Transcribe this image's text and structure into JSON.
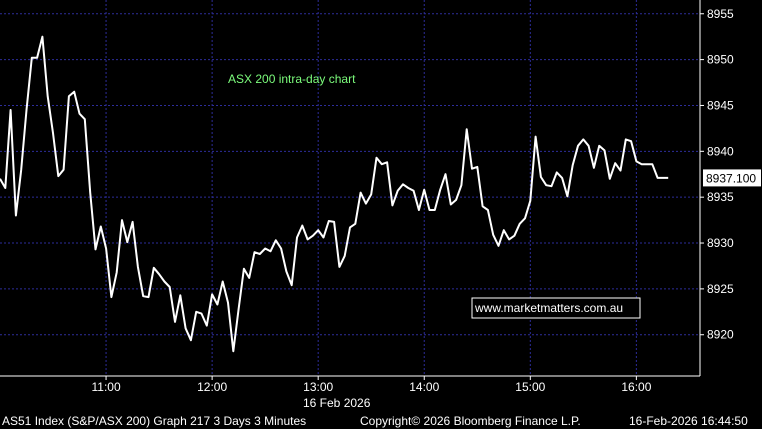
{
  "chart_data": {
    "type": "line",
    "annotation": "ASX 200 intra-day chart",
    "watermark": "www.marketmatters.com.au",
    "date_label": "16 Feb 2026",
    "last_value_label": "8937.100",
    "footer": {
      "left": "AS51 Index (S&P/ASX 200) Graph 217 3 Days 3 Minutes",
      "center": "Copyright© 2026 Bloomberg Finance L.P.",
      "right": "16-Feb-2026 16:44:50"
    },
    "y_ticks": [
      8920,
      8925,
      8930,
      8935,
      8940,
      8945,
      8950,
      8955
    ],
    "y_tick_labels": [
      "8920",
      "8925",
      "8930",
      "8935",
      "8940",
      "8945",
      "8950",
      "8955"
    ],
    "ylim": [
      8915.5,
      8956.5
    ],
    "x_ticks": [
      11,
      12,
      13,
      14,
      15,
      16
    ],
    "x_tick_labels": [
      "11:00",
      "12:00",
      "13:00",
      "14:00",
      "15:00",
      "16:00"
    ],
    "xlim": [
      10.0,
      16.6
    ],
    "grid": true,
    "colors": {
      "line": "#ffffff",
      "grid": "#2d2d9a",
      "background": "#000000",
      "annotation": "#7CFC7C"
    },
    "series": [
      {
        "x": [
          10.0,
          10.05,
          10.1,
          10.15,
          10.2,
          10.25,
          10.3,
          10.35,
          10.4,
          10.45,
          10.5,
          10.55,
          10.6,
          10.65,
          10.7,
          10.75,
          10.8,
          10.85,
          10.9,
          10.95,
          11.0,
          11.05,
          11.1,
          11.15,
          11.2,
          11.25,
          11.3,
          11.35,
          11.4,
          11.45,
          11.5,
          11.55,
          11.6,
          11.65,
          11.7,
          11.75,
          11.8,
          11.85,
          11.9,
          11.95,
          12.0,
          12.05,
          12.1,
          12.15,
          12.2,
          12.25,
          12.3,
          12.35,
          12.4,
          12.45,
          12.5,
          12.55,
          12.6,
          12.65,
          12.7,
          12.75,
          12.8,
          12.85,
          12.9,
          12.95,
          13.0,
          13.05,
          13.1,
          13.15,
          13.2,
          13.25,
          13.3,
          13.35,
          13.4,
          13.45,
          13.5,
          13.55,
          13.6,
          13.65,
          13.7,
          13.75,
          13.8,
          13.85,
          13.9,
          13.95,
          14.0,
          14.05,
          14.1,
          14.15,
          14.2,
          14.25,
          14.3,
          14.35,
          14.4,
          14.45,
          14.5,
          14.55,
          14.6,
          14.65,
          14.7,
          14.75,
          14.8,
          14.85,
          14.9,
          14.95,
          15.0,
          15.05,
          15.1,
          15.15,
          15.2,
          15.25,
          15.3,
          15.35,
          15.4,
          15.45,
          15.5,
          15.55,
          15.6,
          15.65,
          15.7,
          15.75,
          15.8,
          15.85,
          15.9,
          15.95,
          16.0,
          16.05,
          16.1,
          16.15,
          16.2,
          16.25,
          16.3
        ],
        "values": [
          8937,
          8936,
          8944.5,
          8933,
          8938,
          8944.5,
          8950.2,
          8950.2,
          8952.5,
          8946,
          8942,
          8937.3,
          8938,
          8946,
          8946.5,
          8944.1,
          8943.5,
          8935.5,
          8929.3,
          8931.8,
          8929.4,
          8924.1,
          8926.8,
          8932.5,
          8930.1,
          8932.3,
          8927.4,
          8924.2,
          8924.1,
          8927.3,
          8926.6,
          8925.8,
          8925.2,
          8921.4,
          8924.3,
          8920.7,
          8919.4,
          8922.5,
          8922.3,
          8921,
          8924.4,
          8923.3,
          8925.8,
          8923.5,
          8918.2,
          8922.8,
          8927.2,
          8926.2,
          8929,
          8928.8,
          8929.4,
          8929.1,
          8930.3,
          8929.4,
          8926.9,
          8925.4,
          8930.6,
          8931.9,
          8930.4,
          8930.8,
          8931.4,
          8930.6,
          8932.4,
          8932.3,
          8927.4,
          8928.6,
          8931.7,
          8932.1,
          8935.5,
          8934.3,
          8935.3,
          8939.3,
          8938.6,
          8938.8,
          8934.1,
          8935.7,
          8936.4,
          8936,
          8935.7,
          8933.6,
          8935.8,
          8933.6,
          8933.6,
          8935.8,
          8937.5,
          8934.2,
          8934.7,
          8936.3,
          8942.4,
          8938.1,
          8938.3,
          8934,
          8933.6,
          8930.9,
          8929.7,
          8931.4,
          8930.4,
          8930.8,
          8932.1,
          8932.7,
          8934.6,
          8941.6,
          8937.2,
          8936.3,
          8936.2,
          8937.7,
          8937.1,
          8935.1,
          8938.5,
          8940.6,
          8941.3,
          8940.6,
          8938.2,
          8940.6,
          8940.1,
          8937,
          8938.7,
          8937.9,
          8941.3,
          8941.1,
          8938.9,
          8938.6,
          8938.6,
          8938.6,
          8937.1,
          8937.1,
          8937.1
        ]
      }
    ]
  }
}
